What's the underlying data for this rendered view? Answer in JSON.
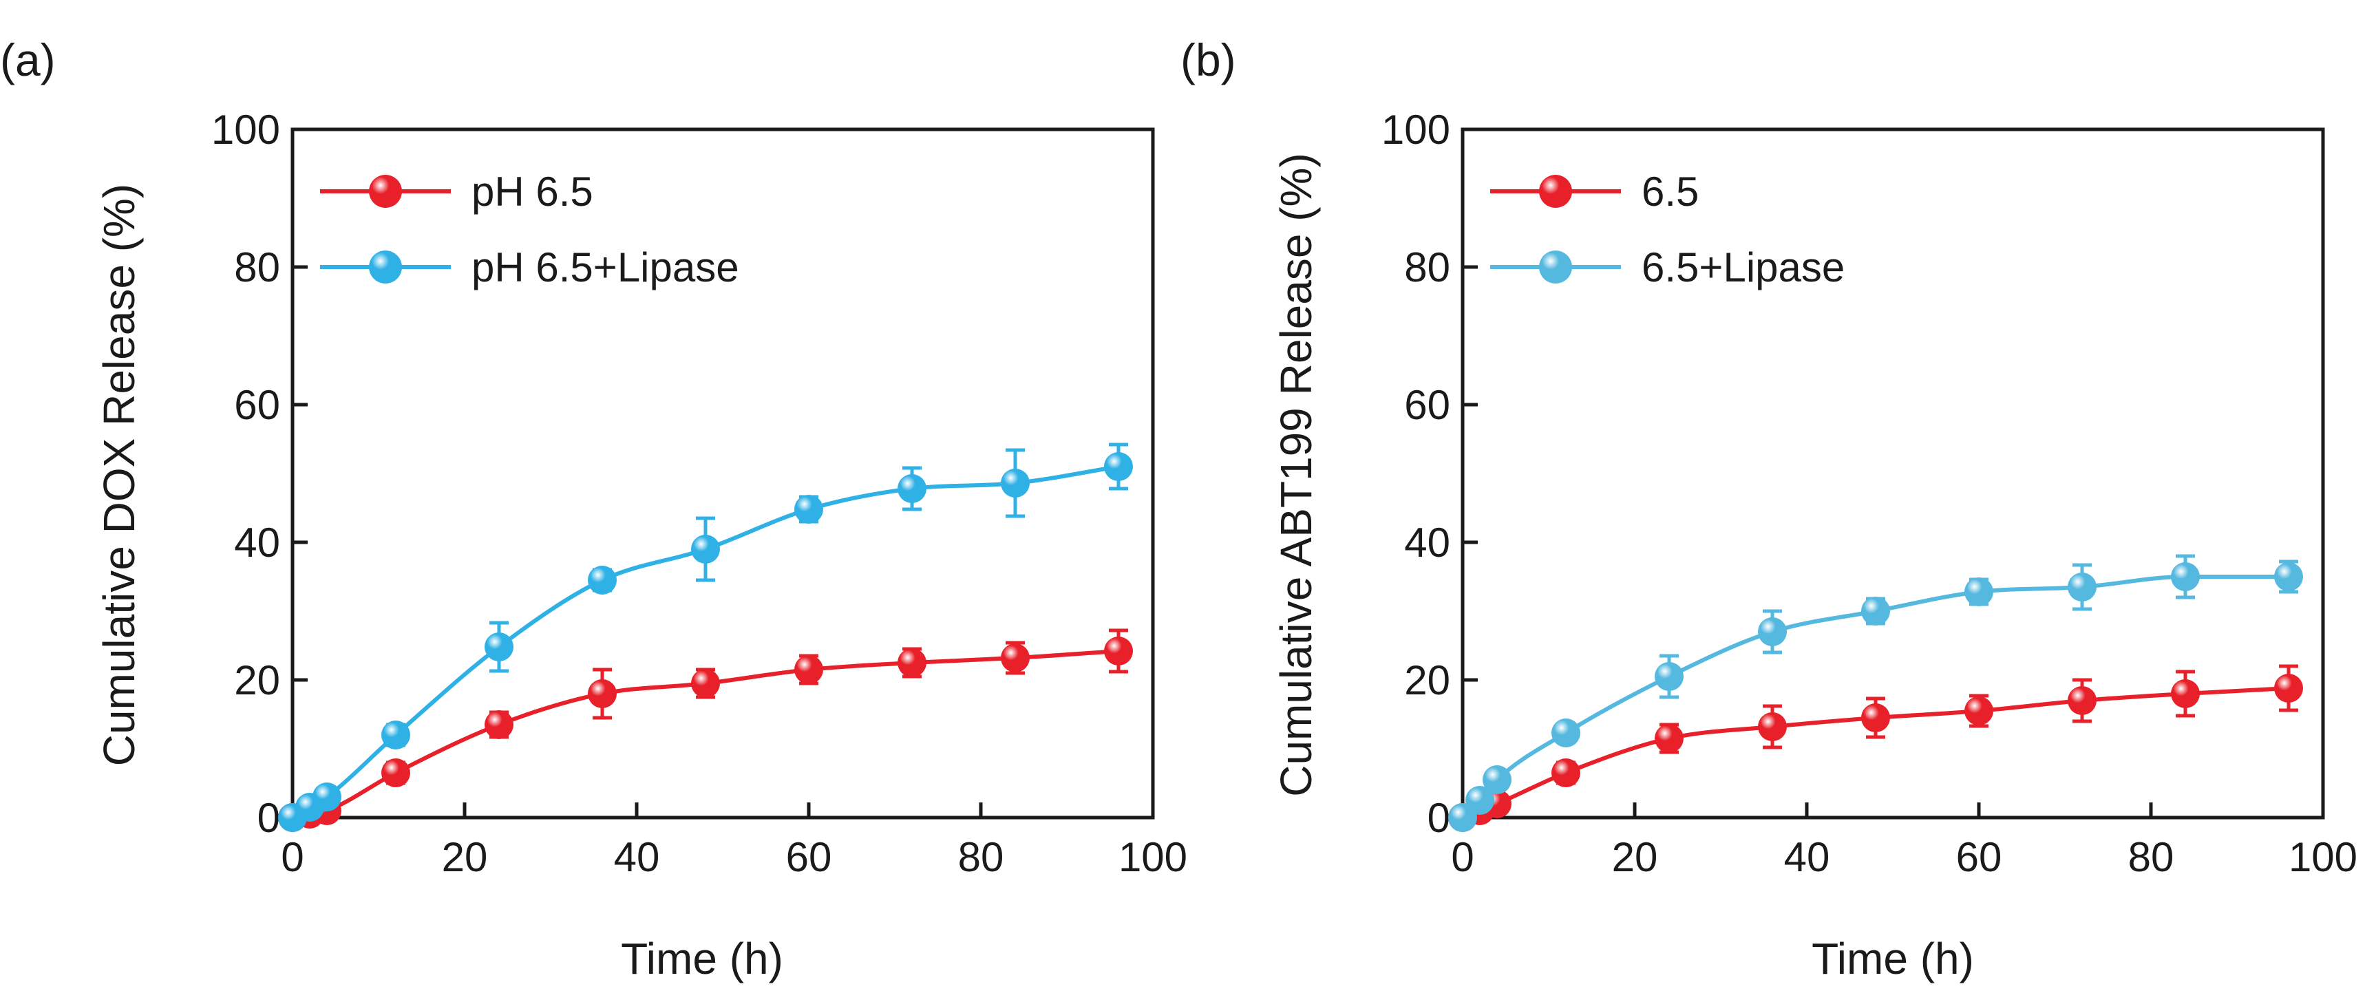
{
  "chart_data": [
    {
      "panel_label": "(a)",
      "type": "line",
      "xlabel": "Time (h)",
      "ylabel": "Cumulative DOX Release (%)",
      "xlim": [
        0,
        100
      ],
      "ylim": [
        0,
        100
      ],
      "xticks": [
        "0",
        "20",
        "40",
        "60",
        "80",
        "100"
      ],
      "yticks": [
        "0",
        "20",
        "40",
        "60",
        "80",
        "100"
      ],
      "grid": false,
      "legend_position": "top-left",
      "series": [
        {
          "name": "pH 6.5",
          "color": "#e8202a",
          "x": [
            0,
            2,
            4,
            12,
            24,
            36,
            48,
            60,
            72,
            84,
            96
          ],
          "y": [
            0,
            0.5,
            1.0,
            6.5,
            13.5,
            18.0,
            19.5,
            21.5,
            22.5,
            23.2,
            24.2
          ],
          "err": [
            0.3,
            0.5,
            0.6,
            1.5,
            1.8,
            3.5,
            2.0,
            2.0,
            2.0,
            2.2,
            3.0
          ]
        },
        {
          "name": "pH 6.5+Lipase",
          "color": "#2fb1e6",
          "x": [
            0,
            2,
            4,
            12,
            24,
            36,
            48,
            60,
            72,
            84,
            96
          ],
          "y": [
            0,
            1.5,
            3.0,
            12.0,
            24.8,
            34.5,
            39.0,
            44.8,
            47.8,
            48.6,
            51.0
          ],
          "err": [
            0.3,
            0.6,
            1.0,
            1.5,
            3.5,
            1.5,
            4.5,
            1.8,
            3.0,
            4.8,
            3.2
          ]
        }
      ]
    },
    {
      "panel_label": "(b)",
      "type": "line",
      "xlabel": "Time (h)",
      "ylabel": "Cumulative ABT199 Release (%)",
      "xlim": [
        0,
        100
      ],
      "ylim": [
        0,
        100
      ],
      "xticks": [
        "0",
        "20",
        "40",
        "60",
        "80",
        "100"
      ],
      "yticks": [
        "0",
        "20",
        "40",
        "60",
        "80",
        "100"
      ],
      "grid": false,
      "legend_position": "top-left",
      "series": [
        {
          "name": "6.5",
          "color": "#e8202a",
          "x": [
            0,
            2,
            4,
            12,
            24,
            36,
            48,
            60,
            72,
            84,
            96
          ],
          "y": [
            0,
            1.0,
            2.0,
            6.5,
            11.5,
            13.2,
            14.5,
            15.5,
            17.0,
            18.0,
            18.8
          ],
          "err": [
            0.3,
            0.5,
            0.8,
            1.5,
            2.0,
            3.0,
            2.8,
            2.2,
            3.0,
            3.2,
            3.2
          ]
        },
        {
          "name": "6.5+Lipase",
          "color": "#54b8df",
          "x": [
            0,
            2,
            4,
            12,
            24,
            36,
            48,
            60,
            72,
            84,
            96
          ],
          "y": [
            0,
            2.5,
            5.5,
            12.3,
            20.5,
            27.0,
            30.0,
            32.8,
            33.5,
            35.0,
            35.0
          ],
          "err": [
            0.3,
            0.8,
            1.2,
            1.2,
            3.0,
            3.0,
            1.8,
            1.8,
            3.2,
            3.0,
            2.2
          ]
        }
      ]
    }
  ]
}
